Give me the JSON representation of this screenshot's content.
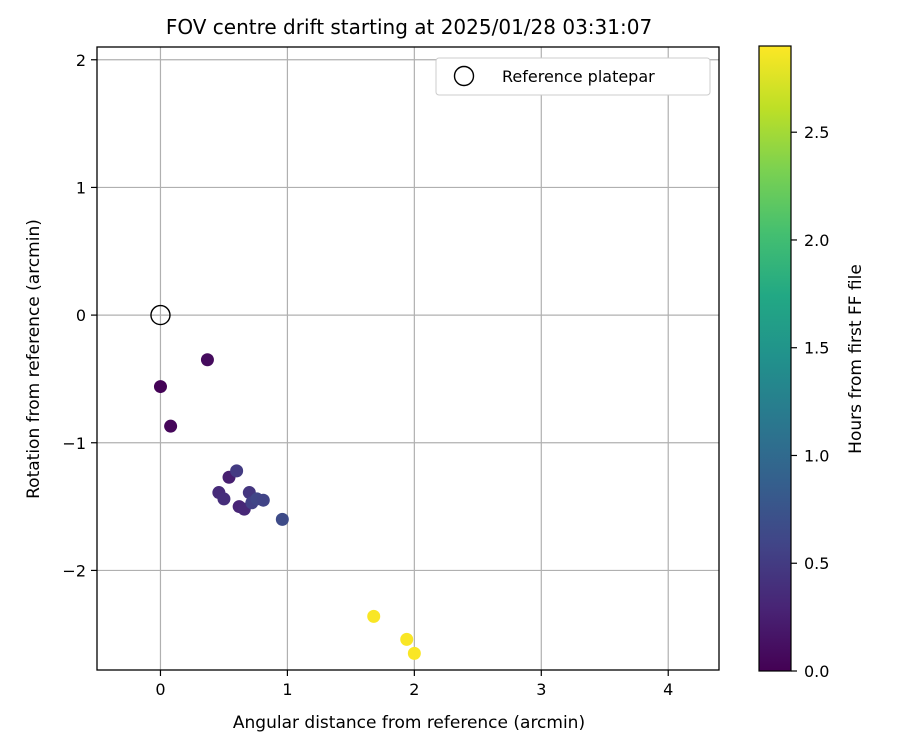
{
  "chart_data": {
    "type": "scatter",
    "title": "FOV centre drift starting at 2025/01/28 03:31:07",
    "xlabel": "Angular distance from reference (arcmin)",
    "ylabel": "Rotation from reference (arcmin)",
    "xlim": [
      -0.5,
      4.4
    ],
    "ylim": [
      -2.78,
      2.1
    ],
    "xticks": [
      0,
      1,
      2,
      3,
      4
    ],
    "xtick_labels": [
      "0",
      "1",
      "2",
      "3",
      "4"
    ],
    "yticks": [
      -2,
      -1,
      0,
      1,
      2
    ],
    "ytick_labels": [
      "−2",
      "−1",
      "0",
      "1",
      "2"
    ],
    "grid": true,
    "legend_placement": "top-right",
    "legend_entries": [
      "Reference platepar"
    ],
    "reference_point": {
      "x": 0.0,
      "y": 0.0
    },
    "points": [
      {
        "x": 0.0,
        "y": -0.56,
        "h": 0.02
      },
      {
        "x": 0.08,
        "y": -0.87,
        "h": 0.05
      },
      {
        "x": 0.37,
        "y": -0.35,
        "h": 0.08
      },
      {
        "x": 0.46,
        "y": -1.39,
        "h": 0.35
      },
      {
        "x": 0.5,
        "y": -1.44,
        "h": 0.38
      },
      {
        "x": 0.54,
        "y": -1.27,
        "h": 0.25
      },
      {
        "x": 0.6,
        "y": -1.22,
        "h": 0.5
      },
      {
        "x": 0.62,
        "y": -1.5,
        "h": 0.3
      },
      {
        "x": 0.66,
        "y": -1.52,
        "h": 0.33
      },
      {
        "x": 0.7,
        "y": -1.39,
        "h": 0.45
      },
      {
        "x": 0.72,
        "y": -1.47,
        "h": 0.55
      },
      {
        "x": 0.76,
        "y": -1.44,
        "h": 0.6
      },
      {
        "x": 0.81,
        "y": -1.45,
        "h": 0.58
      },
      {
        "x": 0.96,
        "y": -1.6,
        "h": 0.65
      },
      {
        "x": 1.68,
        "y": -2.36,
        "h": 2.88
      },
      {
        "x": 1.94,
        "y": -2.54,
        "h": 2.88
      },
      {
        "x": 2.0,
        "y": -2.65,
        "h": 2.88
      }
    ],
    "colorbar": {
      "label": "Hours from first FF file",
      "range": [
        0,
        2.9
      ],
      "ticks": [
        0.0,
        0.5,
        1.0,
        1.5,
        2.0,
        2.5
      ],
      "tick_labels": [
        "0.0",
        "0.5",
        "1.0",
        "1.5",
        "2.0",
        "2.5"
      ],
      "colormap": "viridis"
    }
  }
}
